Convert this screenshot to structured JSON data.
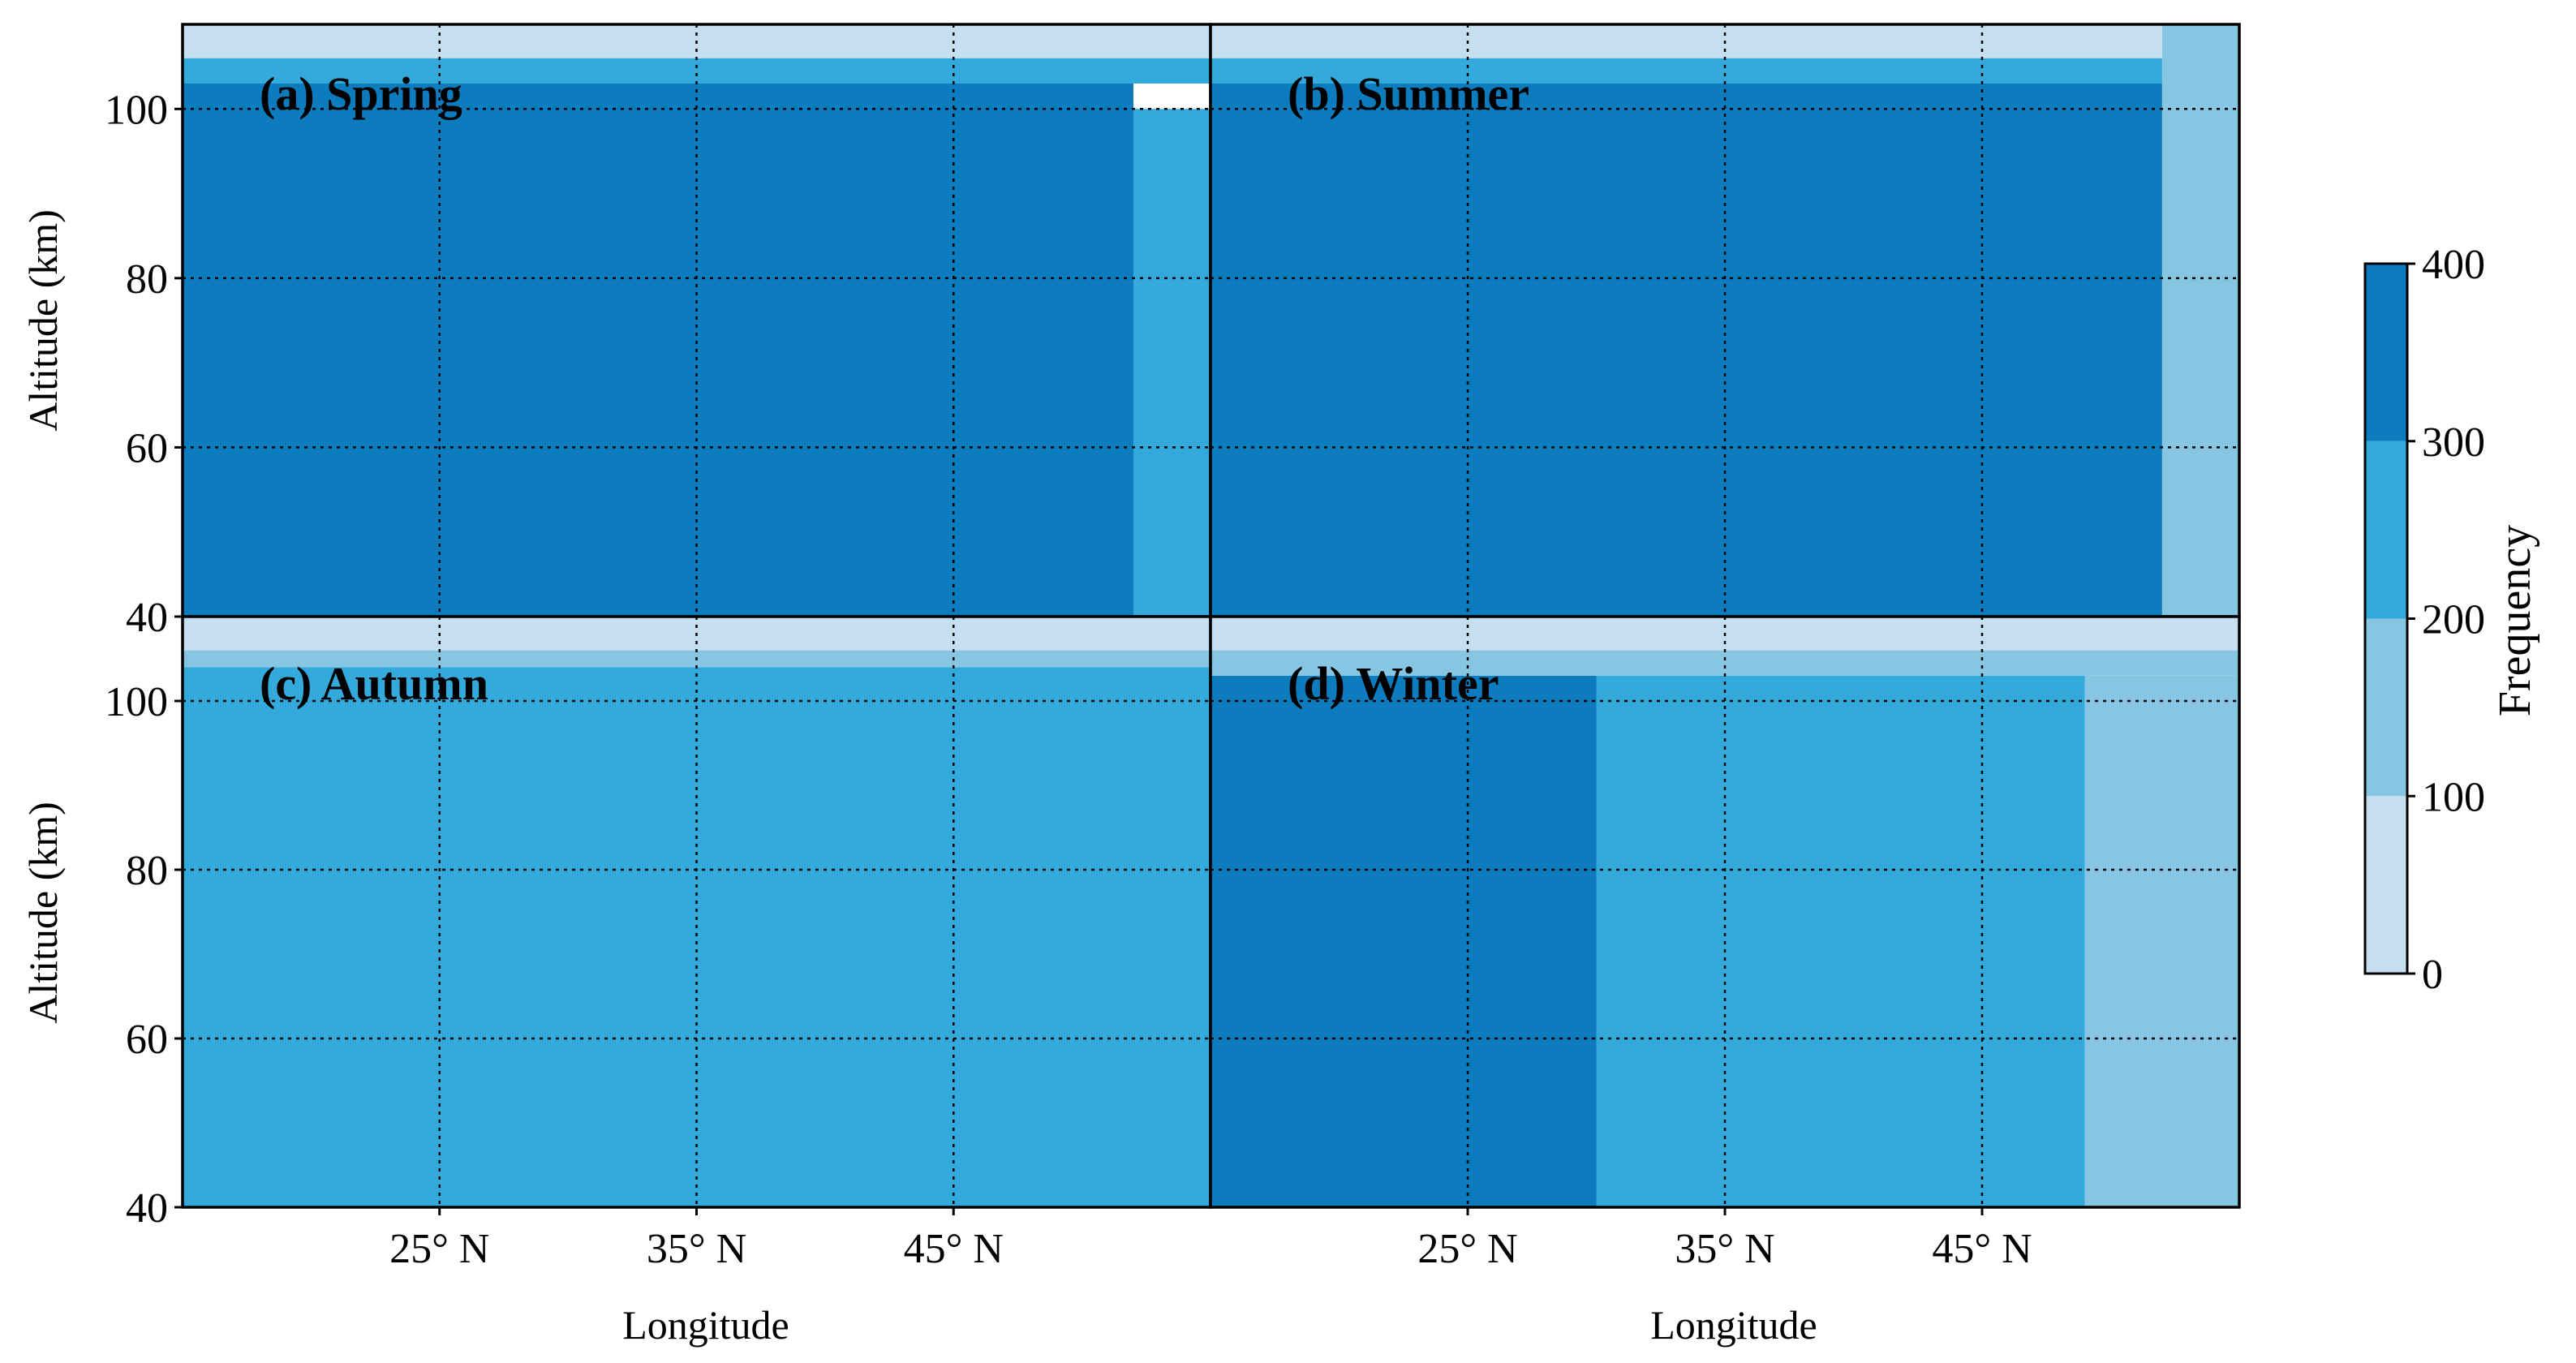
{
  "chart_data": [
    {
      "type": "heatmap",
      "title": "(a) Spring",
      "xlabel": "",
      "ylabel": "Altitude (km)",
      "xticks": [
        "25° N",
        "35° N",
        "45° N"
      ],
      "yticks": [
        "40",
        "60",
        "80",
        "100"
      ],
      "ylim": [
        40,
        110
      ],
      "grid": true,
      "description_of_values": "frequency level per cell (0-400)",
      "regions": [
        {
          "lat": [
            15,
            52
          ],
          "alt": [
            40,
            103
          ],
          "value": 380
        },
        {
          "lat": [
            52,
            55
          ],
          "alt": [
            40,
            100
          ],
          "value": 230
        },
        {
          "lat": [
            15,
            55
          ],
          "alt": [
            103,
            106
          ],
          "value": 240
        },
        {
          "lat": [
            15,
            55
          ],
          "alt": [
            106,
            110
          ],
          "value": 70
        }
      ]
    },
    {
      "type": "heatmap",
      "title": "(b) Summer",
      "xlabel": "Longitude",
      "ylabel": "",
      "xticks": [
        "25° N",
        "35° N",
        "45° N"
      ],
      "yticks": [],
      "ylim": [
        40,
        110
      ],
      "grid": true,
      "regions": [
        {
          "lat": [
            15,
            52
          ],
          "alt": [
            40,
            103
          ],
          "value": 370
        },
        {
          "lat": [
            52,
            55
          ],
          "alt": [
            40,
            110
          ],
          "value": 150
        },
        {
          "lat": [
            15,
            52
          ],
          "alt": [
            103,
            106
          ],
          "value": 240
        },
        {
          "lat": [
            15,
            52
          ],
          "alt": [
            106,
            110
          ],
          "value": 70
        }
      ]
    },
    {
      "type": "heatmap",
      "title": "(c) Autumn",
      "xlabel": "Longitude",
      "ylabel": "Altitude (km)",
      "xticks": [
        "25° N",
        "35° N",
        "45° N"
      ],
      "yticks": [
        "40",
        "60",
        "80",
        "100"
      ],
      "ylim": [
        40,
        110
      ],
      "grid": true,
      "regions": [
        {
          "lat": [
            15,
            55
          ],
          "alt": [
            40,
            104
          ],
          "value": 250
        },
        {
          "lat": [
            15,
            55
          ],
          "alt": [
            104,
            106
          ],
          "value": 150
        },
        {
          "lat": [
            15,
            55
          ],
          "alt": [
            106,
            110
          ],
          "value": 70
        }
      ]
    },
    {
      "type": "heatmap",
      "title": "(d) Winter",
      "xlabel": "Longitude",
      "ylabel": "",
      "xticks": [
        "25° N",
        "35° N",
        "45° N"
      ],
      "yticks": [],
      "ylim": [
        40,
        110
      ],
      "grid": true,
      "regions": [
        {
          "lat": [
            15,
            30
          ],
          "alt": [
            40,
            103
          ],
          "value": 350
        },
        {
          "lat": [
            30,
            49
          ],
          "alt": [
            40,
            103
          ],
          "value": 260
        },
        {
          "lat": [
            49,
            55
          ],
          "alt": [
            40,
            103
          ],
          "value": 170
        },
        {
          "lat": [
            15,
            55
          ],
          "alt": [
            103,
            106
          ],
          "value": 160
        },
        {
          "lat": [
            15,
            55
          ],
          "alt": [
            106,
            110
          ],
          "value": 70
        }
      ]
    }
  ],
  "colorbar": {
    "label": "Frequency",
    "ticks": [
      "0",
      "100",
      "200",
      "300",
      "400"
    ],
    "levels": [
      {
        "min": 0,
        "max": 100,
        "color": "#c6dff0"
      },
      {
        "min": 100,
        "max": 200,
        "color": "#86c6e2"
      },
      {
        "min": 200,
        "max": 300,
        "color": "#34aadc"
      },
      {
        "min": 300,
        "max": 400,
        "color": "#0c7cbe"
      }
    ]
  }
}
